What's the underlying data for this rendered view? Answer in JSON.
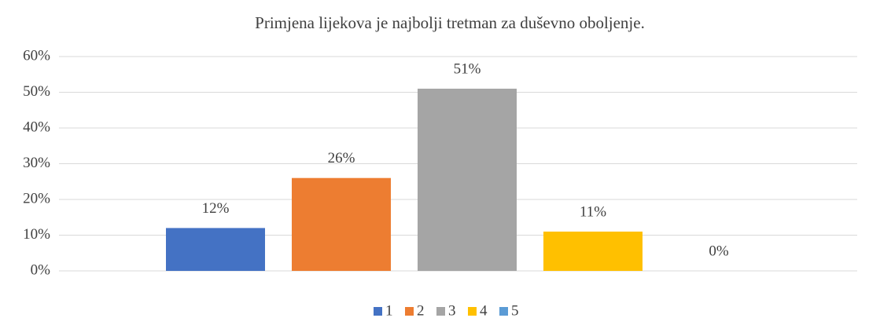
{
  "chart_data": {
    "type": "bar",
    "title": "Primjena lijekova je najbolji tretman za duševno oboljenje.",
    "categories": [
      null
    ],
    "series": [
      {
        "name": "1",
        "color": "#4472c4",
        "values": [
          12
        ],
        "value_labels": [
          "12%"
        ]
      },
      {
        "name": "2",
        "color": "#ed7d31",
        "values": [
          26
        ],
        "value_labels": [
          "26%"
        ]
      },
      {
        "name": "3",
        "color": "#a5a5a5",
        "values": [
          51
        ],
        "value_labels": [
          "51%"
        ]
      },
      {
        "name": "4",
        "color": "#ffc000",
        "values": [
          11
        ],
        "value_labels": [
          "11%"
        ]
      },
      {
        "name": "5",
        "color": "#5b9bd5",
        "values": [
          0
        ],
        "value_labels": [
          "0%"
        ]
      }
    ],
    "ylim": [
      0,
      60
    ],
    "yticks": [
      {
        "value": 0,
        "label": "0%"
      },
      {
        "value": 10,
        "label": "10%"
      },
      {
        "value": 20,
        "label": "20%"
      },
      {
        "value": 30,
        "label": "30%"
      },
      {
        "value": 40,
        "label": "40%"
      },
      {
        "value": 50,
        "label": "50%"
      },
      {
        "value": 60,
        "label": "60%"
      }
    ],
    "grid": true,
    "legend": "bottom"
  }
}
